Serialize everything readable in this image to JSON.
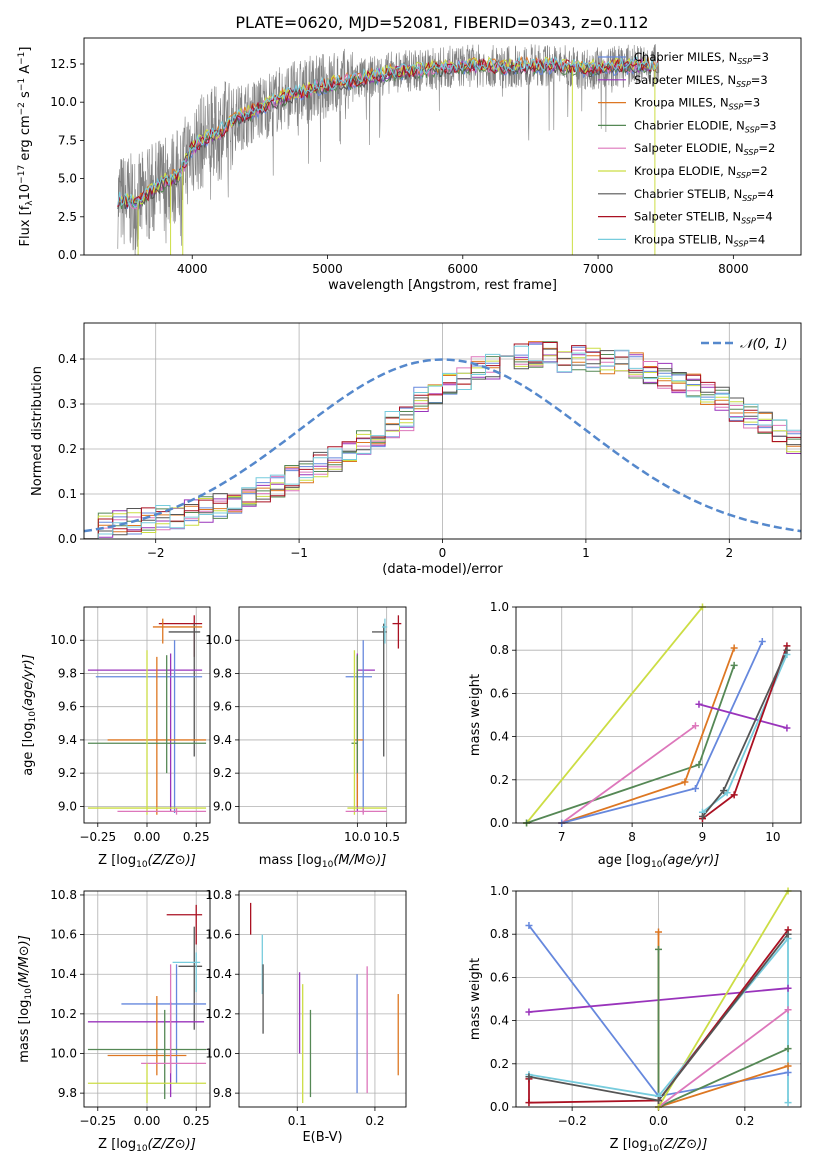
{
  "title": "PLATE=0620, MJD=52081, FIBERID=0343, z=0.112",
  "colors": {
    "Chabrier MILES": "#6688dd",
    "Salpeter MILES": "#9933bb",
    "Kroupa MILES": "#dd7722",
    "Chabrier ELODIE": "#558855",
    "Salpeter ELODIE": "#dd77bb",
    "Kroupa ELODIE": "#ccdd44",
    "Chabrier STELIB": "#555555",
    "Salpeter STELIB": "#aa1122",
    "Kroupa STELIB": "#77ccdd",
    "Normal": "#5588cc",
    "Data": "#808080"
  },
  "chart_data": [
    {
      "id": "spectrum",
      "type": "line",
      "xlabel": "wavelength [Angstrom, rest frame]",
      "ylabel": "Flux [f_λ10^-17 erg cm^-2 s^-1 A^-1]",
      "xlim": [
        3200,
        8500
      ],
      "ylim": [
        0,
        14.2
      ],
      "xticks": [
        4000,
        5000,
        6000,
        7000,
        8000
      ],
      "yticks": [
        0.0,
        2.5,
        5.0,
        7.5,
        10.0,
        12.5
      ],
      "legend": [
        {
          "label": "Chabrier MILES, N",
          "sub": "SSP",
          "suffix": "=3",
          "model": "Chabrier MILES"
        },
        {
          "label": "Salpeter MILES, N",
          "sub": "SSP",
          "suffix": "=3",
          "model": "Salpeter MILES"
        },
        {
          "label": "Kroupa MILES, N",
          "sub": "SSP",
          "suffix": "=3",
          "model": "Kroupa MILES"
        },
        {
          "label": "Chabrier ELODIE, N",
          "sub": "SSP",
          "suffix": "=3",
          "model": "Chabrier ELODIE"
        },
        {
          "label": "Salpeter ELODIE, N",
          "sub": "SSP",
          "suffix": "=2",
          "model": "Salpeter ELODIE"
        },
        {
          "label": "Kroupa ELODIE, N",
          "sub": "SSP",
          "suffix": "=2",
          "model": "Kroupa ELODIE"
        },
        {
          "label": "Chabrier STELIB, N",
          "sub": "SSP",
          "suffix": "=4",
          "model": "Chabrier STELIB"
        },
        {
          "label": "Salpeter STELIB, N",
          "sub": "SSP",
          "suffix": "=4",
          "model": "Salpeter STELIB"
        },
        {
          "label": "Kroupa STELIB, N",
          "sub": "SSP",
          "suffix": "=4",
          "model": "Kroupa STELIB"
        }
      ],
      "legend_position": "upper right",
      "continuum": {
        "x": [
          3450,
          3600,
          3700,
          3800,
          3900,
          4000,
          4100,
          4200,
          4300,
          4400,
          4500,
          4700,
          4900,
          5100,
          5300,
          5500,
          5700,
          5900,
          6100,
          6300,
          6500,
          6700,
          6900,
          7100,
          7300,
          7500,
          7700,
          7900,
          8100,
          8300,
          8500
        ],
        "y": [
          3.6,
          3.4,
          4.2,
          4.8,
          5.2,
          7.0,
          7.6,
          8.0,
          8.8,
          9.2,
          9.6,
          10.4,
          10.9,
          11.3,
          11.6,
          12.0,
          12.1,
          12.3,
          12.4,
          12.3,
          12.4,
          12.4,
          12.2,
          12.3,
          12.4,
          12.5,
          12.6,
          12.8,
          13.0,
          13.1,
          13.2
        ]
      }
    },
    {
      "id": "residuals",
      "type": "line",
      "xlabel": "(data-model)/error",
      "ylabel": "Normed distribution",
      "xlim": [
        -2.5,
        2.5
      ],
      "ylim": [
        0,
        0.48
      ],
      "xticks": [
        -2,
        -1,
        0,
        1,
        2
      ],
      "xticklabels": [
        "−2",
        "−1",
        "0",
        "1",
        "2"
      ],
      "yticks": [
        0.0,
        0.1,
        0.2,
        0.3,
        0.4
      ],
      "legend_label": "𝒩(0, 1)",
      "legend_position": "upper right",
      "bin_width": 0.1,
      "bin_start": -2.5,
      "hist_base": [
        0.03,
        0.032,
        0.035,
        0.038,
        0.042,
        0.047,
        0.052,
        0.059,
        0.066,
        0.075,
        0.085,
        0.095,
        0.107,
        0.12,
        0.135,
        0.15,
        0.165,
        0.18,
        0.2,
        0.215,
        0.235,
        0.255,
        0.27,
        0.29,
        0.31,
        0.325,
        0.34,
        0.355,
        0.365,
        0.375,
        0.385,
        0.39,
        0.395,
        0.4,
        0.4,
        0.4,
        0.395,
        0.39,
        0.385,
        0.375,
        0.365,
        0.355,
        0.34,
        0.325,
        0.31,
        0.29,
        0.27,
        0.255,
        0.235,
        0.215
      ],
      "grid": true
    },
    {
      "id": "age-vs-z",
      "type": "scatter",
      "xlabel": "Z [log10(Z/Z⊙)]",
      "ylabel": "age [log10(age/yr)]",
      "xlim": [
        -0.32,
        0.32
      ],
      "ylim": [
        8.9,
        10.2
      ],
      "xticks": [
        -0.25,
        0.0,
        0.25
      ],
      "xticklabels": [
        "−0.25",
        "0.00",
        "0.25"
      ],
      "yticks": [
        9.0,
        9.2,
        9.4,
        9.6,
        9.8,
        10.0
      ],
      "points": [
        {
          "model": "Salpeter STELIB",
          "x": 0.24,
          "y": 10.1,
          "xerr": [
            0.18,
            0.04
          ],
          "yerr": [
            0.2,
            0.05
          ]
        },
        {
          "model": "Chabrier STELIB",
          "x": 0.24,
          "y": 10.05,
          "xerr": [
            0.13,
            0.03
          ],
          "yerr": [
            0.75,
            0.05
          ]
        },
        {
          "model": "Kroupa MILES",
          "x": 0.08,
          "y": 10.08,
          "xerr": [
            0.05,
            0.2
          ],
          "yerr": [
            0.1,
            0.05
          ]
        },
        {
          "model": "Salpeter MILES",
          "x": 0.12,
          "y": 9.82,
          "xerr": [
            0.42,
            0.16
          ],
          "yerr": [
            0.85,
            0.1
          ]
        },
        {
          "model": "Chabrier MILES",
          "x": 0.14,
          "y": 9.78,
          "xerr": [
            0.4,
            0.14
          ],
          "yerr": [
            0.82,
            0.22
          ]
        },
        {
          "model": "Kroupa MILES",
          "x": 0.05,
          "y": 9.4,
          "xerr": [
            0.25,
            0.25
          ],
          "yerr": [
            0.45,
            0.5
          ]
        },
        {
          "model": "Chabrier ELODIE",
          "x": 0.1,
          "y": 9.38,
          "xerr": [
            0.4,
            0.2
          ],
          "yerr": [
            0.18,
            0.53
          ]
        },
        {
          "model": "Kroupa ELODIE",
          "x": 0.0,
          "y": 8.99,
          "xerr": [
            0.3,
            0.3
          ],
          "yerr": [
            0.04,
            0.95
          ]
        },
        {
          "model": "Salpeter ELODIE",
          "x": 0.15,
          "y": 8.97,
          "xerr": [
            0.3,
            0.15
          ],
          "yerr": [
            0.02,
            0.02
          ]
        }
      ],
      "grid": true
    },
    {
      "id": "age-vs-mass",
      "type": "scatter",
      "xlabel": "mass [log10(M/M⊙)]",
      "ylabel": "",
      "xlim": [
        7.98,
        10.83
      ],
      "ylim": [
        8.9,
        10.2
      ],
      "xticks": [
        10.0,
        10.5
      ],
      "xticklabels": [
        "10.0",
        "10.5"
      ],
      "yticks": [
        9.0,
        9.2,
        9.4,
        9.6,
        9.8,
        10.0
      ],
      "points": [
        {
          "model": "Salpeter STELIB",
          "x": 10.7,
          "y": 10.1,
          "xerr": [
            0.1,
            0.05
          ],
          "yerr": [
            0.15,
            0.05
          ]
        },
        {
          "model": "Chabrier STELIB",
          "x": 10.45,
          "y": 10.05,
          "xerr": [
            0.2,
            0.05
          ],
          "yerr": [
            0.75,
            0.05
          ]
        },
        {
          "model": "Kroupa STELIB",
          "x": 10.47,
          "y": 10.08,
          "xerr": [
            0.05,
            0.04
          ],
          "yerr": [
            0.1,
            0.05
          ]
        },
        {
          "model": "Salpeter MILES",
          "x": 10.0,
          "y": 9.82,
          "xerr": [
            0.0,
            0.3
          ],
          "yerr": [
            0.85,
            0.1
          ]
        },
        {
          "model": "Chabrier MILES",
          "x": 10.1,
          "y": 9.78,
          "xerr": [
            0.3,
            0.15
          ],
          "yerr": [
            0.82,
            0.22
          ]
        },
        {
          "model": "Kroupa MILES",
          "x": 10.0,
          "y": 9.4,
          "xerr": [
            0.05,
            0.1
          ],
          "yerr": [
            0.4,
            0.5
          ]
        },
        {
          "model": "Chabrier ELODIE",
          "x": 10.0,
          "y": 9.38,
          "xerr": [
            0.1,
            0.0
          ],
          "yerr": [
            0.18,
            0.53
          ]
        },
        {
          "model": "Kroupa ELODIE",
          "x": 9.95,
          "y": 8.99,
          "xerr": [
            0.12,
            0.55
          ],
          "yerr": [
            0.04,
            0.95
          ]
        },
        {
          "model": "Salpeter ELODIE",
          "x": 10.1,
          "y": 8.97,
          "xerr": [
            0.3,
            0.4
          ],
          "yerr": [
            0.02,
            0.02
          ]
        }
      ],
      "grid": true
    },
    {
      "id": "massweight-vs-age",
      "type": "line",
      "xlabel": "age [log10(age/yr)]",
      "ylabel": "mass weight",
      "xlim": [
        6.35,
        10.4
      ],
      "ylim": [
        0,
        1
      ],
      "xticks": [
        7,
        8,
        9,
        10
      ],
      "yticks": [
        0.0,
        0.2,
        0.4,
        0.6,
        0.8,
        1.0
      ],
      "series": [
        {
          "model": "Kroupa ELODIE",
          "x": [
            6.5,
            9.0
          ],
          "y": [
            0.0,
            1.0
          ]
        },
        {
          "model": "Chabrier ELODIE",
          "x": [
            6.5,
            8.95,
            9.45
          ],
          "y": [
            0.0,
            0.27,
            0.73
          ]
        },
        {
          "model": "Salpeter ELODIE",
          "x": [
            7.0,
            8.9
          ],
          "y": [
            0.0,
            0.45
          ]
        },
        {
          "model": "Kroupa MILES",
          "x": [
            7.0,
            8.75,
            9.45
          ],
          "y": [
            0.0,
            0.19,
            0.81
          ]
        },
        {
          "model": "Chabrier MILES",
          "x": [
            7.0,
            8.9,
            9.85
          ],
          "y": [
            0.0,
            0.16,
            0.84
          ]
        },
        {
          "model": "Salpeter MILES",
          "x": [
            8.95,
            10.2
          ],
          "y": [
            0.55,
            0.44
          ]
        },
        {
          "model": "Kroupa STELIB",
          "x": [
            9.0,
            9.35,
            10.2
          ],
          "y": [
            0.05,
            0.14,
            0.78
          ]
        },
        {
          "model": "Salpeter STELIB",
          "x": [
            9.0,
            9.45,
            10.2
          ],
          "y": [
            0.02,
            0.13,
            0.82
          ]
        },
        {
          "model": "Chabrier STELIB",
          "x": [
            9.0,
            9.3,
            10.2
          ],
          "y": [
            0.03,
            0.15,
            0.8
          ]
        }
      ],
      "grid": true
    },
    {
      "id": "mass-vs-z",
      "type": "scatter",
      "xlabel": "Z [log10(Z/Z⊙)]",
      "ylabel": "mass [log10(M/M⊙)]",
      "xlim": [
        -0.32,
        0.32
      ],
      "ylim": [
        9.73,
        10.82
      ],
      "xticks": [
        -0.25,
        0.0,
        0.25
      ],
      "xticklabels": [
        "−0.25",
        "0.00",
        "0.25"
      ],
      "yticks": [
        9.8,
        10.0,
        10.2,
        10.4,
        10.6,
        10.8
      ],
      "points": [
        {
          "model": "Salpeter STELIB",
          "x": 0.25,
          "y": 10.7,
          "xerr": [
            0.15,
            0.03
          ],
          "yerr": [
            0.15,
            0.05
          ]
        },
        {
          "model": "Chabrier STELIB",
          "x": 0.24,
          "y": 10.44,
          "xerr": [
            0.08,
            0.04
          ],
          "yerr": [
            0.32,
            0.2
          ]
        },
        {
          "model": "Kroupa STELIB",
          "x": 0.25,
          "y": 10.46,
          "xerr": [
            0.12,
            0.02
          ],
          "yerr": [
            0.15,
            0.05
          ]
        },
        {
          "model": "Chabrier MILES",
          "x": 0.15,
          "y": 10.25,
          "xerr": [
            0.28,
            0.15
          ],
          "yerr": [
            0.4,
            0.2
          ]
        },
        {
          "model": "Salpeter MILES",
          "x": 0.12,
          "y": 10.16,
          "xerr": [
            0.42,
            0.17
          ],
          "yerr": [
            0.38,
            0.1
          ]
        },
        {
          "model": "Kroupa MILES",
          "x": 0.05,
          "y": 9.99,
          "xerr": [
            0.25,
            0.15
          ],
          "yerr": [
            0.1,
            0.3
          ]
        },
        {
          "model": "Chabrier ELODIE",
          "x": 0.09,
          "y": 10.02,
          "xerr": [
            0.39,
            0.21
          ],
          "yerr": [
            0.25,
            0.2
          ]
        },
        {
          "model": "Salpeter ELODIE",
          "x": 0.12,
          "y": 9.95,
          "xerr": [
            0.15,
            0.18
          ],
          "yerr": [
            0.05,
            0.5
          ]
        },
        {
          "model": "Kroupa ELODIE",
          "x": 0.0,
          "y": 9.85,
          "xerr": [
            0.3,
            0.3
          ],
          "yerr": [
            0.1,
            0.1
          ]
        }
      ],
      "grid": true
    },
    {
      "id": "mass-vs-ebv",
      "type": "scatter",
      "xlabel": "E(B-V)",
      "ylabel": "",
      "xlim": [
        0.025,
        0.24
      ],
      "ylim": [
        9.73,
        10.82
      ],
      "xticks": [
        0.1,
        0.2
      ],
      "xticklabels": [
        "0.1",
        "0.2"
      ],
      "yticks": [
        9.8,
        10.0,
        10.2,
        10.4,
        10.6,
        10.8
      ],
      "points": [
        {
          "model": "Salpeter STELIB",
          "x": 0.04,
          "y": 10.68,
          "yerr": [
            0.08,
            0.08
          ]
        },
        {
          "model": "Kroupa STELIB",
          "x": 0.055,
          "y": 10.45,
          "yerr": [
            0.15,
            0.15
          ]
        },
        {
          "model": "Chabrier STELIB",
          "x": 0.056,
          "y": 10.3,
          "yerr": [
            0.2,
            0.15
          ]
        },
        {
          "model": "Salpeter MILES",
          "x": 0.103,
          "y": 10.15,
          "yerr": [
            0.15,
            0.26
          ]
        },
        {
          "model": "Kroupa ELODIE",
          "x": 0.107,
          "y": 10.05,
          "yerr": [
            0.3,
            0.3
          ]
        },
        {
          "model": "Chabrier ELODIE",
          "x": 0.117,
          "y": 10.0,
          "yerr": [
            0.22,
            0.22
          ]
        },
        {
          "model": "Chabrier MILES",
          "x": 0.177,
          "y": 10.1,
          "yerr": [
            0.3,
            0.3
          ]
        },
        {
          "model": "Salpeter ELODIE",
          "x": 0.19,
          "y": 10.1,
          "yerr": [
            0.3,
            0.34
          ]
        },
        {
          "model": "Kroupa MILES",
          "x": 0.23,
          "y": 10.09,
          "yerr": [
            0.2,
            0.21
          ]
        }
      ],
      "grid": true
    },
    {
      "id": "massweight-vs-z",
      "type": "line",
      "xlabel": "Z [log10(Z/Z⊙)]",
      "ylabel": "mass weight",
      "xlim": [
        -0.33,
        0.33
      ],
      "ylim": [
        0,
        1
      ],
      "xticks": [
        -0.2,
        0.0,
        0.2
      ],
      "xticklabels": [
        "−0.2",
        "0.0",
        "0.2"
      ],
      "yticks": [
        0.0,
        0.2,
        0.4,
        0.6,
        0.8,
        1.0
      ],
      "series": [
        {
          "model": "Chabrier MILES",
          "x": [
            -0.3,
            0.0,
            0.3
          ],
          "y": [
            0.84,
            0.05,
            0.16
          ]
        },
        {
          "model": "Salpeter MILES",
          "x": [
            -0.3,
            0.3
          ],
          "y": [
            0.44,
            0.55
          ]
        },
        {
          "model": "Kroupa MILES",
          "x": [
            0.0,
            0.0,
            0.3
          ],
          "y": [
            0.81,
            0.0,
            0.19
          ]
        },
        {
          "model": "Chabrier ELODIE",
          "x": [
            0.0,
            0.0,
            0.3
          ],
          "y": [
            0.73,
            0.0,
            0.27
          ]
        },
        {
          "model": "Salpeter ELODIE",
          "x": [
            0.0,
            0.3
          ],
          "y": [
            0.0,
            0.45
          ]
        },
        {
          "model": "Kroupa ELODIE",
          "x": [
            0.0,
            0.3
          ],
          "y": [
            0.0,
            1.0
          ]
        },
        {
          "model": "Kroupa STELIB",
          "x": [
            -0.3,
            0.0,
            0.3,
            0.3
          ],
          "y": [
            0.15,
            0.05,
            0.78,
            0.02
          ]
        },
        {
          "model": "Salpeter STELIB",
          "x": [
            -0.3,
            -0.3,
            0.0,
            0.3
          ],
          "y": [
            0.13,
            0.02,
            0.03,
            0.82
          ]
        },
        {
          "model": "Chabrier STELIB",
          "x": [
            -0.3,
            0.0,
            0.3
          ],
          "y": [
            0.14,
            0.03,
            0.8
          ]
        }
      ],
      "grid": true
    }
  ]
}
